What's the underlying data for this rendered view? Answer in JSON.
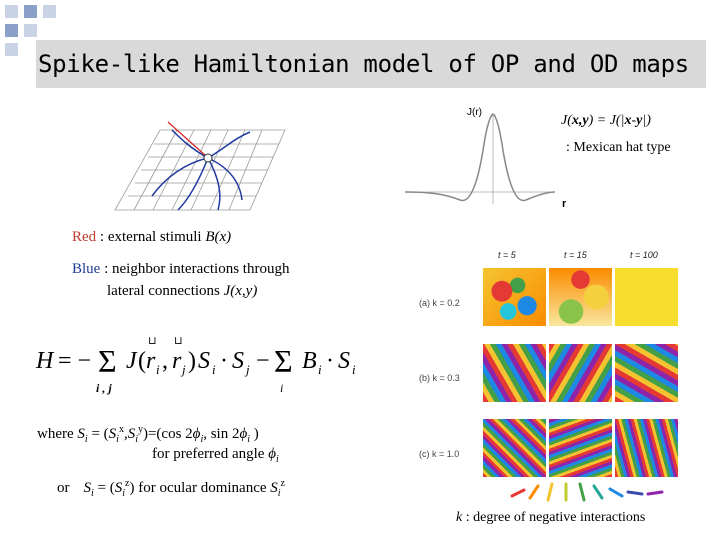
{
  "slide": {
    "title": "Spike-like Hamiltonian model of OP and OD maps",
    "kernel": {
      "formula_parts": [
        "J(",
        "x,y",
        ") = J(|",
        "x",
        "-",
        "y",
        "|)"
      ],
      "type_note": ": Mexican hat type",
      "axis_y": "J(r)",
      "axis_x": "r"
    },
    "legend": {
      "red_word": "Red",
      "red_rest": " : external stimuli ",
      "red_fn": "B(x)",
      "blue_word": "Blue",
      "blue_rest": " : neighbor interactions through",
      "blue_line2_pre": "lateral connections ",
      "blue_line2_fn": "J(x,y)"
    },
    "hamiltonian": "H = −Σ J(r_i, r_j) S_i · S_j − Σ B_i · S_i",
    "where": {
      "pre": "where ",
      "S": "S",
      "i": "i",
      "eq": " = (",
      "comp_x": "x",
      "comp_y": "y",
      "close_eq": ")=(cos 2",
      "phi": "ϕ",
      "mid": ", sin 2",
      "end": " )",
      "line2_pre": "for preferred angle ",
      "or": "or",
      "od_eq": " = (",
      "comp_z": "z",
      "od_mid": ") for ocular dominance "
    },
    "simulation": {
      "time_labels": [
        "t = 5",
        "t = 15",
        "t = 100"
      ],
      "rows": [
        "(a)  k = 0.2",
        "(b)  k = 0.3",
        "(c)  k = 1.0"
      ],
      "caption_k": "k",
      "caption_rest": " : degree of negative interactions"
    }
  }
}
